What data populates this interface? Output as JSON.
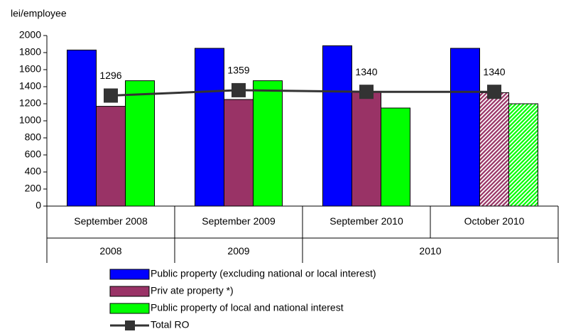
{
  "chart_data": {
    "type": "bar",
    "y_label": "lei/employee",
    "categories": [
      "September 2008",
      "September 2009",
      "September 2010",
      "October 2010"
    ],
    "groups": [
      {
        "label": "2008",
        "span": 1
      },
      {
        "label": "2009",
        "span": 1
      },
      {
        "label": "2010",
        "span": 2
      }
    ],
    "series": [
      {
        "name": "Public property  (excluding national or local interest)",
        "color": "#0000ff",
        "values": [
          1830,
          1850,
          1880,
          1850
        ]
      },
      {
        "name": "Priv ate property *)",
        "color": "#993366",
        "values": [
          1170,
          1250,
          1340,
          1330
        ],
        "hatched": [
          false,
          false,
          false,
          true
        ]
      },
      {
        "name": "Public property  of  local and national interest",
        "color": "#00ff00",
        "values": [
          1470,
          1470,
          1150,
          1200
        ],
        "hatched": [
          false,
          false,
          false,
          true
        ]
      },
      {
        "name": "Total RO",
        "color": "#333333",
        "type": "line",
        "values": [
          1296,
          1359,
          1340,
          1340
        ]
      }
    ],
    "ylim": [
      0,
      2000
    ],
    "yticks": [
      0,
      200,
      400,
      600,
      800,
      1000,
      1200,
      1400,
      1600,
      1800,
      2000
    ],
    "grid": false
  }
}
